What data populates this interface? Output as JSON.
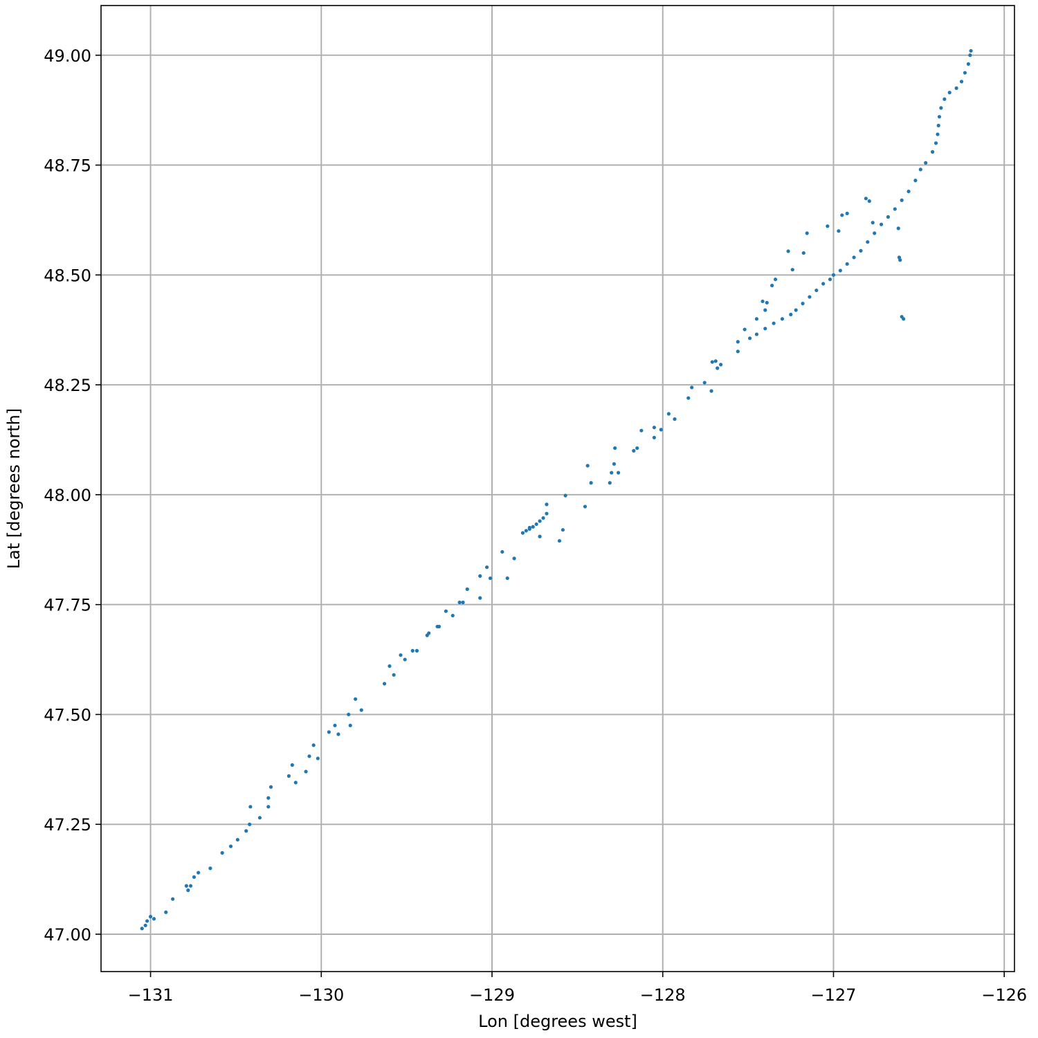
{
  "chart_data": {
    "type": "scatter",
    "x_label": "Lon [degrees west]",
    "y_label": "Lat [degrees north]",
    "xlim": [
      -131.29,
      -125.94
    ],
    "ylim": [
      46.915,
      49.113
    ],
    "xticks": [
      {
        "value": -131,
        "label": "−131"
      },
      {
        "value": -130,
        "label": "−130"
      },
      {
        "value": -129,
        "label": "−129"
      },
      {
        "value": -128,
        "label": "−128"
      },
      {
        "value": -127,
        "label": "−127"
      },
      {
        "value": -126,
        "label": "−126"
      }
    ],
    "yticks": [
      {
        "value": 47,
        "label": "47.00"
      },
      {
        "value": 47.25,
        "label": "47.25"
      },
      {
        "value": 47.5,
        "label": "47.50"
      },
      {
        "value": 47.75,
        "label": "47.75"
      },
      {
        "value": 48,
        "label": "48.00"
      },
      {
        "value": 48.25,
        "label": "48.25"
      },
      {
        "value": 48.5,
        "label": "48.50"
      },
      {
        "value": 48.75,
        "label": "48.75"
      },
      {
        "value": 49,
        "label": "49.00"
      }
    ],
    "grid": true,
    "color": "#1f77b4",
    "x": [
      -131.05,
      -131.03,
      -131.02,
      -131.0,
      -130.98,
      -130.91,
      -130.87,
      -130.79,
      -130.78,
      -130.765,
      -130.745,
      -130.72,
      -130.65,
      -130.58,
      -130.53,
      -130.49,
      -130.44,
      -130.42,
      -130.415,
      -130.36,
      -130.31,
      -130.31,
      -130.295,
      -130.19,
      -130.17,
      -130.15,
      -130.09,
      -130.07,
      -130.045,
      -130.02,
      -129.955,
      -129.92,
      -129.9,
      -129.84,
      -129.83,
      -129.8,
      -129.765,
      -129.63,
      -129.6,
      -129.575,
      -129.535,
      -129.51,
      -129.465,
      -129.44,
      -129.38,
      -129.37,
      -129.32,
      -129.31,
      -129.27,
      -129.23,
      -129.19,
      -129.17,
      -129.145,
      -129.07,
      -129.07,
      -129.03,
      -129.01,
      -128.94,
      -128.91,
      -128.87,
      -128.82,
      -128.8,
      -128.78,
      -128.76,
      -128.74,
      -128.72,
      -128.7,
      -128.68,
      -128.78,
      -128.72,
      -128.68,
      -128.605,
      -128.585,
      -128.57,
      -128.455,
      -128.44,
      -128.42,
      -128.31,
      -128.3,
      -128.285,
      -128.28,
      -128.26,
      -128.17,
      -128.15,
      -128.125,
      -128.05,
      -128.05,
      -128.01,
      -127.965,
      -127.93,
      -127.85,
      -127.83,
      -127.755,
      -127.715,
      -127.71,
      -127.69,
      -127.68,
      -127.66,
      -127.56,
      -127.56,
      -127.52,
      -127.45,
      -127.415,
      -127.4,
      -127.39,
      -127.36,
      -127.34,
      -127.265,
      -127.24,
      -127.175,
      -127.155,
      -127.035,
      -126.97,
      -126.95,
      -126.92,
      -126.81,
      -126.79,
      -126.77,
      -126.62,
      -126.615,
      -126.61,
      -126.6,
      -126.59,
      -127.49,
      -127.45,
      -127.4,
      -127.35,
      -127.3,
      -127.25,
      -127.22,
      -127.18,
      -127.14,
      -127.1,
      -127.06,
      -127.02,
      -127.0,
      -126.96,
      -126.92,
      -126.88,
      -126.84,
      -126.8,
      -126.76,
      -126.72,
      -126.68,
      -126.64,
      -126.6,
      -126.56,
      -126.52,
      -126.49,
      -126.46,
      -126.42,
      -126.4,
      -126.39,
      -126.385,
      -126.38,
      -126.37,
      -126.35,
      -126.32,
      -126.28,
      -126.25,
      -126.23,
      -126.21,
      -126.2,
      -126.195
    ],
    "values": [
      47.013,
      47.02,
      47.03,
      47.04,
      47.035,
      47.05,
      47.08,
      47.11,
      47.1,
      47.11,
      47.13,
      47.14,
      47.15,
      47.185,
      47.2,
      47.215,
      47.235,
      47.25,
      47.29,
      47.265,
      47.31,
      47.29,
      47.335,
      47.36,
      47.385,
      47.345,
      47.37,
      47.405,
      47.43,
      47.4,
      47.46,
      47.475,
      47.455,
      47.5,
      47.475,
      47.535,
      47.51,
      47.57,
      47.61,
      47.59,
      47.635,
      47.625,
      47.645,
      47.645,
      47.68,
      47.685,
      47.7,
      47.7,
      47.735,
      47.725,
      47.755,
      47.755,
      47.785,
      47.765,
      47.815,
      47.835,
      47.81,
      47.87,
      47.81,
      47.855,
      47.913,
      47.918,
      47.922,
      47.927,
      47.933,
      47.94,
      47.947,
      47.957,
      47.925,
      47.905,
      47.978,
      47.895,
      47.92,
      47.998,
      47.973,
      48.066,
      48.027,
      48.027,
      48.05,
      48.07,
      48.106,
      48.05,
      48.1,
      48.106,
      48.146,
      48.13,
      48.153,
      48.148,
      48.184,
      48.172,
      48.22,
      48.244,
      48.255,
      48.236,
      48.302,
      48.304,
      48.288,
      48.296,
      48.326,
      48.348,
      48.376,
      48.4,
      48.44,
      48.42,
      48.437,
      48.476,
      48.49,
      48.554,
      48.512,
      48.55,
      48.595,
      48.611,
      48.6,
      48.636,
      48.64,
      48.674,
      48.668,
      48.619,
      48.606,
      48.54,
      48.534,
      48.405,
      48.4,
      48.356,
      48.365,
      48.378,
      48.39,
      48.4,
      48.41,
      48.42,
      48.435,
      48.45,
      48.465,
      48.48,
      48.49,
      48.5,
      48.51,
      48.525,
      48.54,
      48.555,
      48.575,
      48.595,
      48.615,
      48.632,
      48.65,
      48.67,
      48.69,
      48.715,
      48.74,
      48.755,
      48.78,
      48.8,
      48.82,
      48.84,
      48.86,
      48.88,
      48.9,
      48.915,
      48.925,
      48.94,
      48.96,
      48.98,
      49.0,
      49.01
    ]
  }
}
